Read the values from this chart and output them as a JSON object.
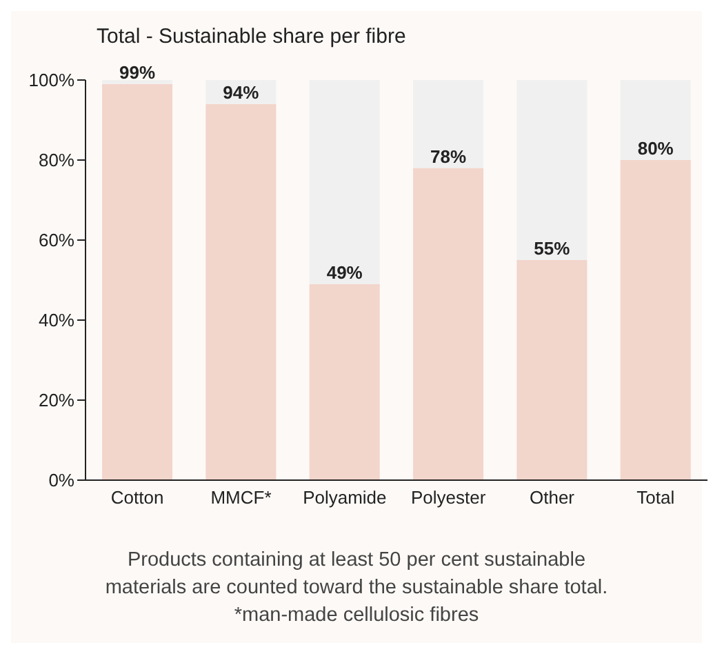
{
  "chart_data": {
    "type": "bar",
    "title": "Total - Sustainable share per fibre",
    "categories": [
      "Cotton",
      "MMCF*",
      "Polyamide",
      "Polyester",
      "Other",
      "Total"
    ],
    "stacked": true,
    "series": [
      {
        "color": "#f2d5cb",
        "values": [
          99,
          94,
          49,
          78,
          55,
          80
        ],
        "value_labels": [
          "99%",
          "94%",
          "49%",
          "78%",
          "55%",
          "80%"
        ]
      },
      {
        "color": "#f0f0f0",
        "values": [
          1,
          6,
          51,
          22,
          45,
          20
        ]
      }
    ],
    "ylim": [
      0,
      100
    ],
    "yticks": [
      {
        "value": 0,
        "label": "0%"
      },
      {
        "value": 20,
        "label": "20%"
      },
      {
        "value": 40,
        "label": "40%"
      },
      {
        "value": 60,
        "label": "60%"
      },
      {
        "value": 80,
        "label": "80%"
      },
      {
        "value": 100,
        "label": "100%"
      }
    ],
    "annotations": [
      "Products containing at least 50 per cent sustainable",
      "materials are counted toward the sustainable share total.",
      "*man-made cellulosic fibres"
    ]
  }
}
